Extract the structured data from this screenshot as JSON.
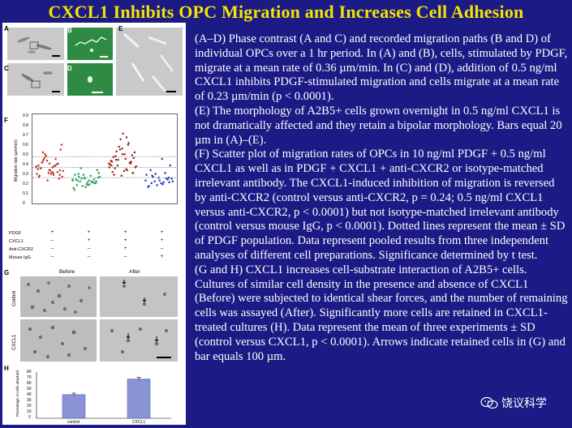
{
  "slide": {
    "title": "CXCL1 Inhibits OPC Migration and Increases Cell Adhesion",
    "caption": [
      "(A–D) Phase contrast (A and C) and recorded migration paths (B and D) of individual OPCs over a 1 hr period. In (A) and (B), cells, stimulated by PDGF, migrate at a mean rate of 0.36 µm/min. In (C) and (D), addition of 0.5 ng/ml CXCL1 inhibits PDGF-stimulated migration and cells migrate at a mean rate of 0.23 µm/min (p < 0.0001).",
      "(E) The morphology of A2B5+ cells grown overnight in 0.5 ng/ml CXCL1 is not dramatically affected and they retain a bipolar morphology. Bars equal 20 µm in (A)–(E).",
      "(F) Scatter plot of migration rates of OPCs in 10 ng/ml PDGF + 0.5 ng/ml CXCL1 as well as in PDGF + CXCL1 + anti-CXCR2 or isotype-matched irrelevant antibody. The CXCL1-induced inhibition of migration is reversed by anti-CXCR2 (control versus anti-CXCR2, p = 0.24; 0.5 ng/ml CXCL1 versus anti-CXCR2, p < 0.0001) but not isotype-matched irrelevant antibody (control versus mouse IgG, p < 0.0001). Dotted lines represent the mean ± SD of PDGF population. Data represent pooled results from three independent analyses of different cell preparations. Significance determined by t test.",
      "(G and H) CXCL1 increases cell-substrate interaction of A2B5+ cells. Cultures of similar cell density in the presence and absence of CXCL1 (Before) were subjected to identical shear forces, and the number of remaining cells was assayed (After). Significantly more cells are retained in CXCL1-treated cultures (H). Data represent the mean of three experiments ± SD (control versus CXCL1, p < 0.0001). Arrows indicate retained cells in (G) and bar equals 100 µm."
    ],
    "watermark": "饶议科学"
  },
  "colors": {
    "background": "#1c1a85",
    "title": "#f2e600",
    "text": "#ffffff",
    "pdgf_series": "#c0392b",
    "cxcl1_series": "#27a05a",
    "anti_cxcr2_series": "#9b2a1a",
    "igg_series": "#2b3fb0",
    "bar_fill": "#8a93d6"
  },
  "figure": {
    "panels": {
      "a": "A",
      "b": "B",
      "c": "C",
      "d": "D",
      "e": "E",
      "f": "F",
      "g": "G",
      "h": "H"
    },
    "panel_f": {
      "ylabel": "Migration rate (µm/min)",
      "yticks": [
        "0.9",
        "0.8",
        "0.7",
        "0.6",
        "0.5",
        "0.4",
        "0.3",
        "0.2",
        "0.1",
        "0"
      ],
      "treatment_rows": [
        {
          "label": "PDGF",
          "marks": [
            "+",
            "+",
            "+",
            "+"
          ]
        },
        {
          "label": "CXCL1",
          "marks": [
            "–",
            "+",
            "+",
            "+"
          ]
        },
        {
          "label": "Anti-CXCR2",
          "marks": [
            "–",
            "–",
            "+",
            "–"
          ]
        },
        {
          "label": "Mouse IgG",
          "marks": [
            "–",
            "–",
            "–",
            "+"
          ]
        }
      ]
    },
    "panel_g": {
      "before": "Before",
      "after": "After",
      "row_control": "Control",
      "row_cxcl1": "CXCL1"
    },
    "panel_h": {
      "ylabel": "Percentage of cells attached",
      "yticks": [
        "80",
        "70",
        "60",
        "50",
        "40",
        "30",
        "20",
        "10",
        "0"
      ]
    }
  },
  "chart_data": [
    {
      "type": "scatter",
      "panel": "F",
      "ylabel": "Migration rate (µm/min)",
      "ylim": [
        0,
        0.9
      ],
      "categories": [
        "PDGF",
        "PDGF + CXCL1",
        "PDGF + CXCL1 + Anti-CXCR2",
        "PDGF + CXCL1 + Mouse IgG"
      ],
      "reference_lines": [
        0.25,
        0.36,
        0.47
      ],
      "series": [
        {
          "color_key": "pdgf_series",
          "values": [
            0.36,
            0.3,
            0.42,
            0.28,
            0.33,
            0.38,
            0.45,
            0.5,
            0.26,
            0.31,
            0.35,
            0.4,
            0.22,
            0.29,
            0.37,
            0.44,
            0.55,
            0.33,
            0.27,
            0.39,
            0.48,
            0.32,
            0.36,
            0.41,
            0.24,
            0.3,
            0.34,
            0.38,
            0.46,
            0.6,
            0.29,
            0.35,
            0.31,
            0.43,
            0.37,
            0.28,
            0.52,
            0.33,
            0.4,
            0.26
          ]
        },
        {
          "color_key": "cxcl1_series",
          "values": [
            0.23,
            0.18,
            0.26,
            0.21,
            0.15,
            0.28,
            0.2,
            0.24,
            0.3,
            0.17,
            0.22,
            0.19,
            0.25,
            0.14,
            0.27,
            0.21,
            0.33,
            0.18,
            0.23,
            0.2,
            0.16,
            0.26,
            0.22,
            0.29,
            0.19,
            0.24,
            0.12,
            0.21,
            0.35,
            0.25,
            0.2,
            0.17,
            0.23,
            0.28,
            0.22
          ]
        },
        {
          "color_key": "anti_cxcr2_series",
          "values": [
            0.4,
            0.34,
            0.48,
            0.3,
            0.56,
            0.38,
            0.62,
            0.44,
            0.36,
            0.5,
            0.28,
            0.42,
            0.66,
            0.39,
            0.33,
            0.53,
            0.46,
            0.72,
            0.31,
            0.41,
            0.58,
            0.37,
            0.45,
            0.35,
            0.49,
            0.27,
            0.43,
            0.6,
            0.38,
            0.52,
            0.32,
            0.47,
            0.4,
            0.55,
            0.36,
            0.68,
            0.44,
            0.3,
            0.5,
            0.42
          ]
        },
        {
          "color_key": "igg_series",
          "values": [
            0.22,
            0.18,
            0.27,
            0.2,
            0.25,
            0.15,
            0.3,
            0.21,
            0.24,
            0.19,
            0.33,
            0.23,
            0.17,
            0.28,
            0.2,
            0.26,
            0.38,
            0.22,
            0.16,
            0.24,
            0.29,
            0.21,
            0.45,
            0.19,
            0.25
          ]
        }
      ]
    },
    {
      "type": "bar",
      "panel": "H",
      "categories": [
        "control",
        "CXCL1"
      ],
      "values": [
        41,
        68
      ],
      "errors": [
        2.5,
        3
      ],
      "ylabel": "Percentage of cells attached",
      "ylim": [
        0,
        80
      ]
    }
  ]
}
